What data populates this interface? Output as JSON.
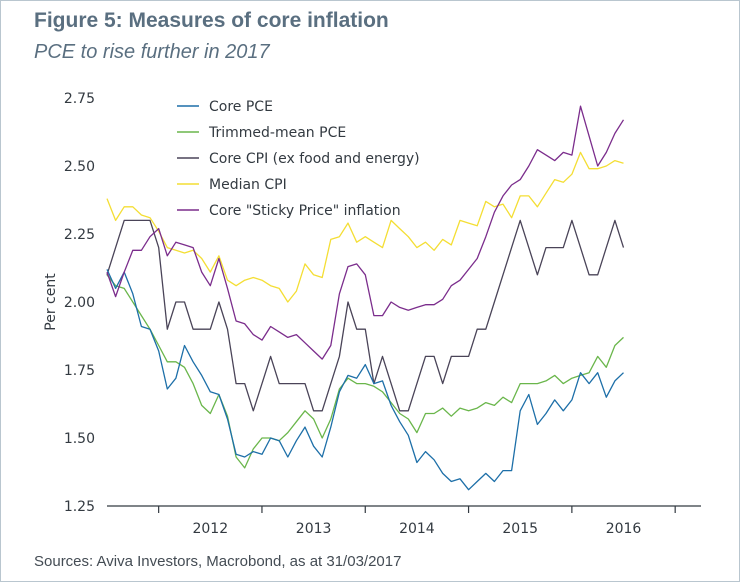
{
  "title": "Figure 5: Measures of core inflation",
  "subtitle": "PCE to rise further in 2017",
  "source": "Sources: Aviva Investors, Macrobond, as at 31/03/2017",
  "chart_data": {
    "type": "line",
    "ylabel": "Per cent",
    "xlabel": "",
    "ylim": [
      1.25,
      2.75
    ],
    "xlim": [
      2011.5,
      2017.25
    ],
    "yticks": [
      "1.25",
      "1.50",
      "1.75",
      "2.00",
      "2.25",
      "2.50",
      "2.75"
    ],
    "xticks": [
      "2012",
      "2013",
      "2014",
      "2015",
      "2016"
    ],
    "grid": false,
    "legend_position": "top-left",
    "start": [
      2011,
      7
    ],
    "series": [
      {
        "name": "Core PCE",
        "color": "#1d6fa8",
        "values": [
          2.12,
          2.05,
          2.11,
          2.03,
          1.91,
          1.9,
          1.82,
          1.68,
          1.72,
          1.84,
          1.78,
          1.73,
          1.67,
          1.66,
          1.57,
          1.44,
          1.43,
          1.45,
          1.44,
          1.5,
          1.49,
          1.43,
          1.49,
          1.54,
          1.47,
          1.43,
          1.54,
          1.67,
          1.73,
          1.72,
          1.77,
          1.7,
          1.71,
          1.62,
          1.56,
          1.51,
          1.41,
          1.45,
          1.42,
          1.37,
          1.34,
          1.35,
          1.31,
          1.34,
          1.37,
          1.34,
          1.38,
          1.38,
          1.6,
          1.66,
          1.55,
          1.59,
          1.64,
          1.6,
          1.64,
          1.74,
          1.7,
          1.74,
          1.65,
          1.71,
          1.74
        ]
      },
      {
        "name": "Trimmed-mean PCE",
        "color": "#6ab64b",
        "values": [
          2.1,
          2.06,
          2.05,
          2.0,
          1.95,
          1.9,
          1.84,
          1.78,
          1.78,
          1.76,
          1.7,
          1.62,
          1.59,
          1.66,
          1.58,
          1.43,
          1.39,
          1.46,
          1.5,
          1.5,
          1.49,
          1.52,
          1.56,
          1.6,
          1.57,
          1.5,
          1.57,
          1.68,
          1.72,
          1.7,
          1.7,
          1.69,
          1.67,
          1.63,
          1.59,
          1.57,
          1.52,
          1.59,
          1.59,
          1.61,
          1.58,
          1.61,
          1.6,
          1.61,
          1.63,
          1.62,
          1.65,
          1.63,
          1.7,
          1.7,
          1.7,
          1.71,
          1.73,
          1.7,
          1.72,
          1.73,
          1.74,
          1.8,
          1.76,
          1.84,
          1.87
        ]
      },
      {
        "name": "Core CPI (ex food and energy)",
        "color": "#4a4458",
        "values": [
          2.1,
          2.2,
          2.3,
          2.3,
          2.3,
          2.3,
          2.2,
          1.9,
          2.0,
          2.0,
          1.9,
          1.9,
          1.9,
          2.0,
          1.9,
          1.7,
          1.7,
          1.6,
          1.7,
          1.8,
          1.7,
          1.7,
          1.7,
          1.7,
          1.6,
          1.6,
          1.7,
          1.8,
          2.0,
          1.9,
          1.9,
          1.7,
          1.8,
          1.7,
          1.6,
          1.6,
          1.7,
          1.8,
          1.8,
          1.7,
          1.8,
          1.8,
          1.8,
          1.9,
          1.9,
          2.0,
          2.1,
          2.2,
          2.3,
          2.2,
          2.1,
          2.2,
          2.2,
          2.2,
          2.3,
          2.2,
          2.1,
          2.1,
          2.2,
          2.3,
          2.2
        ]
      },
      {
        "name": "Median CPI",
        "color": "#f4de34",
        "values": [
          2.38,
          2.3,
          2.35,
          2.35,
          2.32,
          2.31,
          2.26,
          2.2,
          2.19,
          2.18,
          2.19,
          2.16,
          2.11,
          2.17,
          2.08,
          2.06,
          2.08,
          2.09,
          2.08,
          2.06,
          2.05,
          2.0,
          2.04,
          2.14,
          2.1,
          2.09,
          2.23,
          2.24,
          2.29,
          2.22,
          2.24,
          2.22,
          2.2,
          2.3,
          2.27,
          2.24,
          2.2,
          2.22,
          2.19,
          2.23,
          2.21,
          2.3,
          2.29,
          2.28,
          2.37,
          2.35,
          2.36,
          2.31,
          2.39,
          2.39,
          2.35,
          2.4,
          2.45,
          2.44,
          2.47,
          2.55,
          2.49,
          2.49,
          2.5,
          2.52,
          2.51
        ]
      },
      {
        "name": "Core \"Sticky Price\" inflation",
        "color": "#7b2d8c",
        "values": [
          2.11,
          2.02,
          2.11,
          2.19,
          2.19,
          2.24,
          2.27,
          2.17,
          2.22,
          2.21,
          2.2,
          2.11,
          2.06,
          2.16,
          2.05,
          1.93,
          1.92,
          1.88,
          1.86,
          1.91,
          1.89,
          1.87,
          1.88,
          1.85,
          1.82,
          1.79,
          1.84,
          2.03,
          2.13,
          2.14,
          2.1,
          1.95,
          1.95,
          2.0,
          1.98,
          1.97,
          1.98,
          1.99,
          1.99,
          2.01,
          2.06,
          2.08,
          2.12,
          2.16,
          2.24,
          2.33,
          2.39,
          2.43,
          2.45,
          2.5,
          2.56,
          2.54,
          2.52,
          2.55,
          2.54,
          2.72,
          2.61,
          2.5,
          2.55,
          2.62,
          2.67
        ]
      }
    ]
  }
}
